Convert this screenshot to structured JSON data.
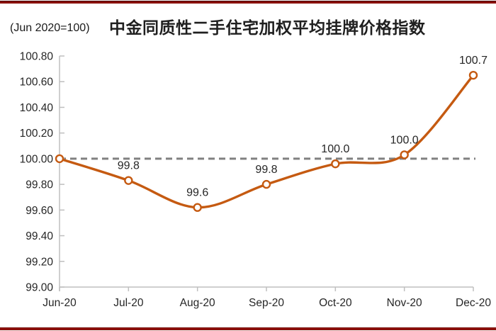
{
  "header": {
    "axis_note": "(Jun 2020=100)",
    "title": "中金同质性二手住宅加权平均挂牌价格指数"
  },
  "colors": {
    "accent_line": "#C55A11",
    "marker_fill": "#FFFFFF",
    "reference_dash": "#808080",
    "axis": "#BFBFBF",
    "label_text": "#262626",
    "title_text": "#1f1f1f",
    "rule_red": "#8a100b"
  },
  "chart_data": {
    "type": "line",
    "title": "中金同质性二手住宅加权平均挂牌价格指数",
    "subtitle": "(Jun 2020=100)",
    "categories": [
      "Jun-20",
      "Jul-20",
      "Aug-20",
      "Sep-20",
      "Oct-20",
      "Nov-20",
      "Dec-20"
    ],
    "values": [
      100.0,
      99.83,
      99.62,
      99.8,
      99.96,
      100.03,
      100.65
    ],
    "point_labels": [
      "",
      "99.8",
      "99.6",
      "99.8",
      "100.0",
      "100.0",
      "100.7"
    ],
    "ylim": [
      99.0,
      100.8
    ],
    "ytick_step": 0.2,
    "ytick_labels": [
      "100.80",
      "100.60",
      "100.40",
      "100.20",
      "100.00",
      "99.80",
      "99.60",
      "99.40",
      "99.20",
      "99.00"
    ],
    "reference_line": {
      "value": 100.0,
      "style": "dashed"
    },
    "smooth": true,
    "marker": "open-circle",
    "grid": "off",
    "legend": "none",
    "xlabel": "",
    "ylabel": ""
  }
}
